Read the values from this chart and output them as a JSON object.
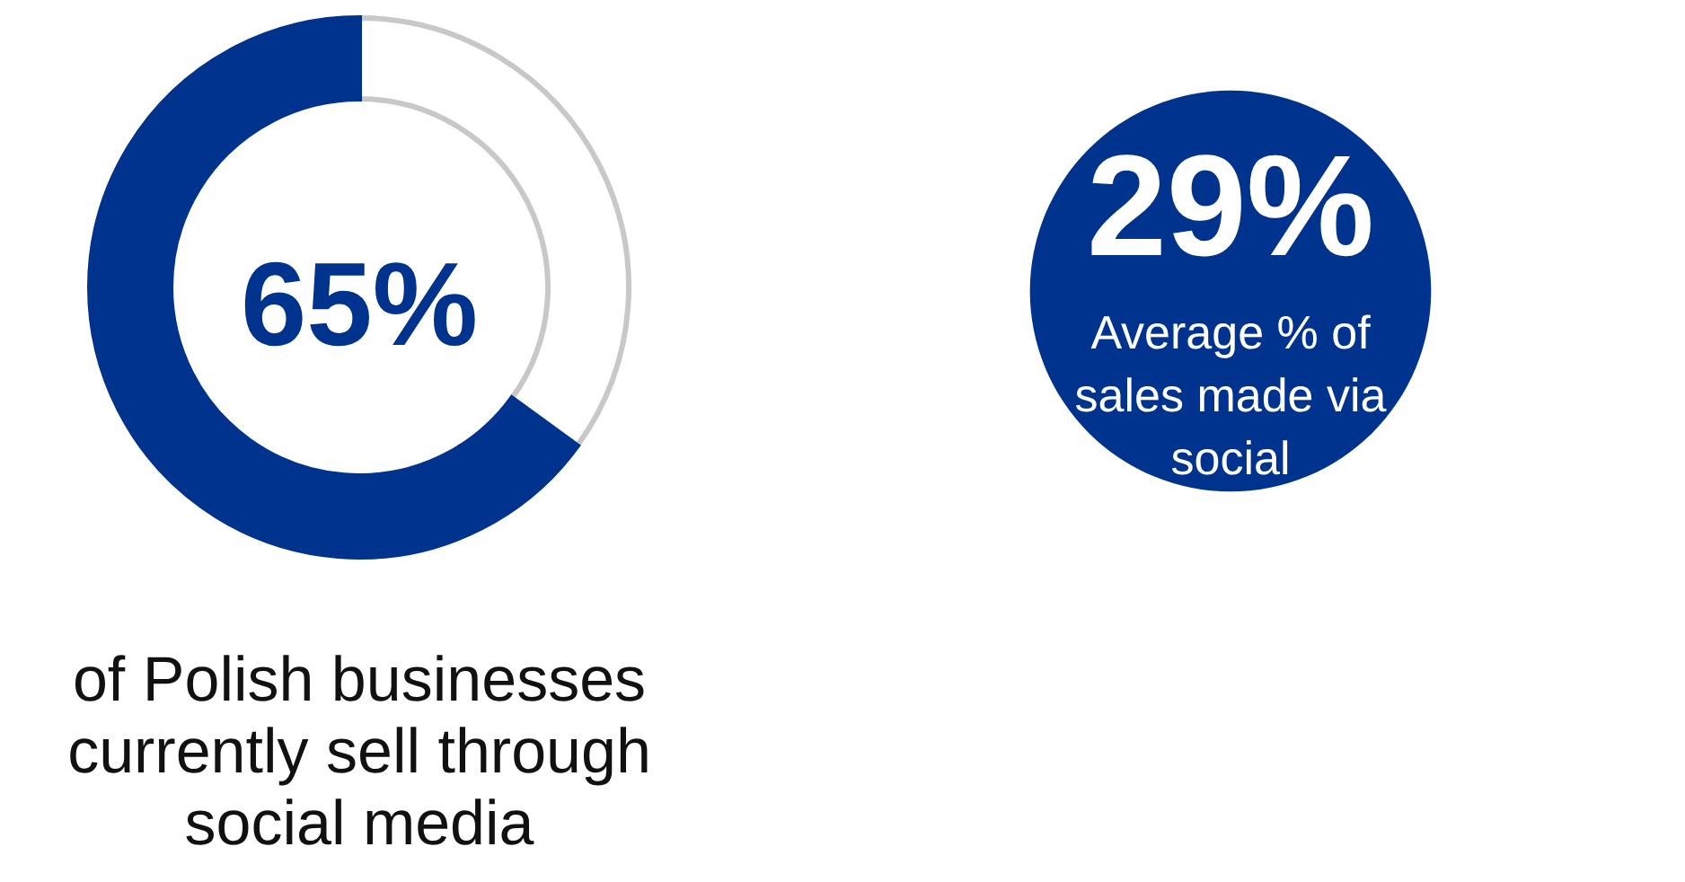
{
  "chart_data": [
    {
      "type": "donut",
      "categories": [
        null,
        null
      ],
      "values": [
        35,
        65
      ],
      "colors": [
        "#ffffff",
        "#00338d"
      ],
      "value_labels": [
        null,
        "65%"
      ],
      "annotations": [
        "of Polish businesses\ncurrently sell through\nsocial media"
      ]
    },
    {
      "type": "other",
      "colors": [
        "#00338d"
      ],
      "annotations": [
        "29%",
        "Average % of\nsales made via\nsocial"
      ]
    }
  ]
}
